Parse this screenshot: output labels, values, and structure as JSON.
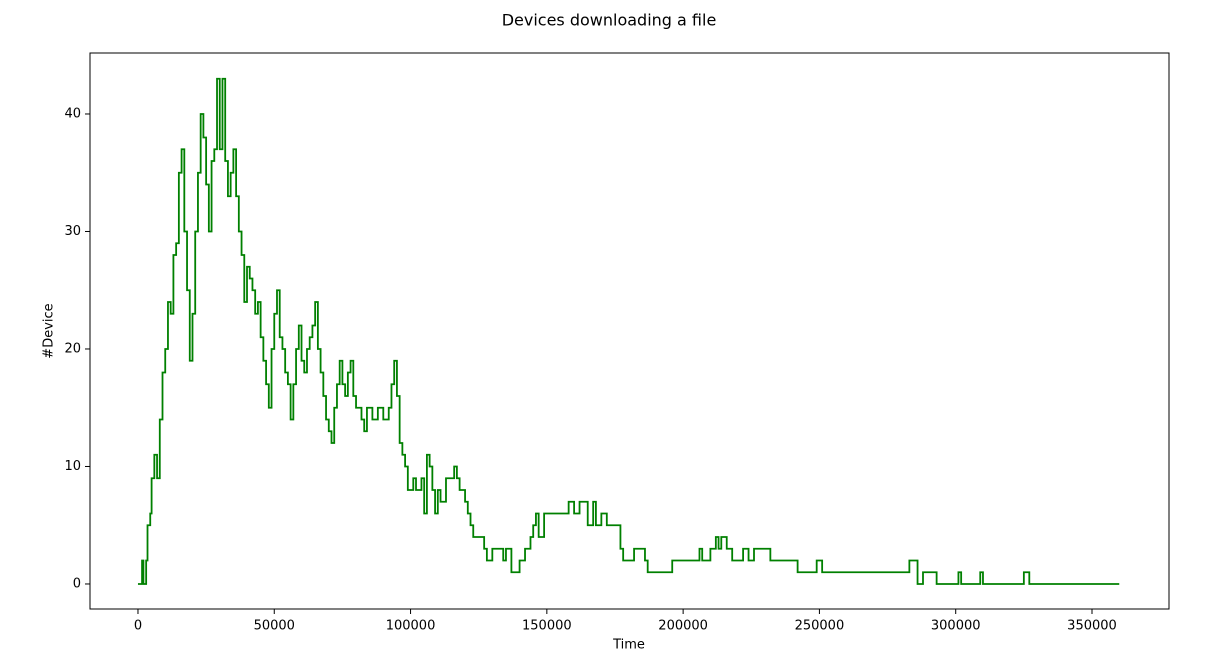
{
  "chart_data": {
    "type": "line",
    "title": "Devices downloading a file",
    "xlabel": "Time",
    "ylabel": "#Device",
    "drawstyle": "steps-post",
    "color": "#008000",
    "x": [
      0,
      1000,
      1500,
      2000,
      3000,
      3500,
      4500,
      5000,
      6000,
      7000,
      8000,
      9000,
      10000,
      11000,
      12000,
      13000,
      14000,
      15000,
      16000,
      17000,
      18000,
      19000,
      20000,
      21000,
      22000,
      23000,
      24000,
      25000,
      26000,
      27000,
      28000,
      29000,
      30000,
      31000,
      32000,
      33000,
      34000,
      35000,
      36000,
      37000,
      38000,
      39000,
      40000,
      41000,
      42000,
      43000,
      44000,
      45000,
      46000,
      47000,
      48000,
      49000,
      50000,
      51000,
      52000,
      53000,
      54000,
      55000,
      56000,
      57000,
      58000,
      59000,
      60000,
      61000,
      62000,
      63000,
      64000,
      65000,
      66000,
      67000,
      68000,
      69000,
      70000,
      71000,
      72000,
      73000,
      74000,
      75000,
      76000,
      77000,
      78000,
      79000,
      80000,
      82000,
      83000,
      84000,
      86000,
      88000,
      90000,
      92000,
      93000,
      94000,
      95000,
      96000,
      97000,
      98000,
      99000,
      101000,
      102000,
      104000,
      105000,
      106000,
      107000,
      108000,
      109000,
      110000,
      111000,
      113000,
      116000,
      117000,
      118000,
      120000,
      121000,
      122000,
      123000,
      127000,
      128000,
      130000,
      134000,
      135000,
      137000,
      140000,
      142000,
      144000,
      145000,
      146000,
      147000,
      149000,
      158000,
      160000,
      162000,
      165000,
      167000,
      168000,
      170000,
      172000,
      177000,
      178000,
      182000,
      186000,
      187000,
      196000,
      206000,
      207000,
      210000,
      212000,
      213000,
      214000,
      216000,
      218000,
      222000,
      224000,
      226000,
      232000,
      242000,
      249000,
      251000,
      283000,
      286000,
      288000,
      293000,
      301000,
      302000,
      309000,
      310000,
      325000,
      327000,
      360000
    ],
    "values": [
      0,
      0,
      2,
      0,
      2,
      5,
      6,
      9,
      11,
      9,
      14,
      18,
      20,
      24,
      23,
      28,
      29,
      35,
      37,
      30,
      25,
      19,
      23,
      30,
      35,
      40,
      38,
      34,
      30,
      36,
      37,
      43,
      37,
      43,
      36,
      33,
      35,
      37,
      33,
      30,
      28,
      24,
      27,
      26,
      25,
      23,
      24,
      21,
      19,
      17,
      15,
      20,
      23,
      25,
      21,
      20,
      18,
      17,
      14,
      17,
      20,
      22,
      19,
      18,
      20,
      21,
      22,
      24,
      20,
      18,
      16,
      14,
      13,
      12,
      15,
      17,
      19,
      17,
      16,
      18,
      19,
      16,
      15,
      14,
      13,
      15,
      14,
      15,
      14,
      15,
      17,
      19,
      16,
      12,
      11,
      10,
      8,
      9,
      8,
      9,
      6,
      11,
      10,
      8,
      6,
      8,
      7,
      9,
      10,
      9,
      8,
      7,
      6,
      5,
      4,
      3,
      2,
      3,
      2,
      3,
      1,
      2,
      3,
      4,
      5,
      6,
      4,
      6,
      7,
      6,
      7,
      5,
      7,
      5,
      6,
      5,
      3,
      2,
      3,
      2,
      1,
      2,
      3,
      2,
      3,
      4,
      3,
      4,
      3,
      2,
      3,
      2,
      3,
      2,
      1,
      2,
      1,
      2,
      0,
      1,
      0,
      1,
      0,
      1,
      0,
      1,
      0,
      0
    ],
    "xlim": [
      -17600,
      378250
    ],
    "xticks": [
      0,
      50000,
      100000,
      150000,
      200000,
      250000,
      300000,
      350000
    ],
    "ylim": [
      -2.13,
      45.19
    ],
    "yticks": [
      0,
      10,
      20,
      30,
      40
    ]
  }
}
